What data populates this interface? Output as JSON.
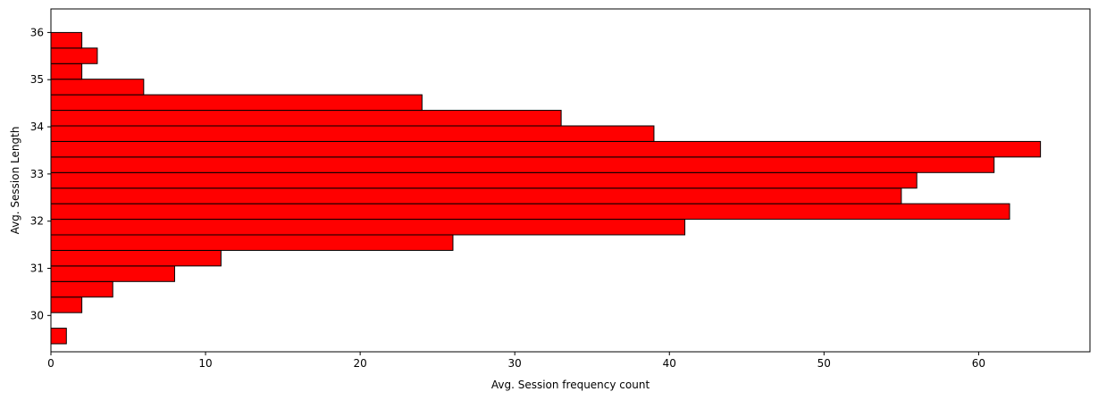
{
  "chart_data": {
    "type": "bar",
    "orientation": "horizontal",
    "title": "",
    "xlabel": "Avg. Session frequency count",
    "ylabel": "Avg. Session Length",
    "xlim": [
      0,
      67.2
    ],
    "ylim": [
      29.23,
      36.5
    ],
    "xticks": [
      0,
      10,
      20,
      30,
      40,
      50,
      60
    ],
    "yticks": [
      30,
      31,
      32,
      33,
      34,
      35,
      36
    ],
    "bar_color": "#ff0000",
    "edge_color": "#000000",
    "grid": false,
    "legend": "none",
    "bins": [
      {
        "y0": 29.4,
        "y1": 29.73,
        "count": 1
      },
      {
        "y0": 29.73,
        "y1": 30.06,
        "count": 0
      },
      {
        "y0": 30.06,
        "y1": 30.39,
        "count": 2
      },
      {
        "y0": 30.39,
        "y1": 30.72,
        "count": 4
      },
      {
        "y0": 30.72,
        "y1": 31.05,
        "count": 8
      },
      {
        "y0": 31.05,
        "y1": 31.38,
        "count": 11
      },
      {
        "y0": 31.38,
        "y1": 31.71,
        "count": 26
      },
      {
        "y0": 31.71,
        "y1": 32.04,
        "count": 41
      },
      {
        "y0": 32.04,
        "y1": 32.37,
        "count": 62
      },
      {
        "y0": 32.37,
        "y1": 32.7,
        "count": 55
      },
      {
        "y0": 32.7,
        "y1": 33.03,
        "count": 56
      },
      {
        "y0": 33.03,
        "y1": 33.36,
        "count": 61
      },
      {
        "y0": 33.36,
        "y1": 33.69,
        "count": 64
      },
      {
        "y0": 33.69,
        "y1": 34.02,
        "count": 39
      },
      {
        "y0": 34.02,
        "y1": 34.35,
        "count": 33
      },
      {
        "y0": 34.35,
        "y1": 34.68,
        "count": 24
      },
      {
        "y0": 34.68,
        "y1": 35.01,
        "count": 6
      },
      {
        "y0": 35.01,
        "y1": 35.34,
        "count": 2
      },
      {
        "y0": 35.34,
        "y1": 35.67,
        "count": 3
      },
      {
        "y0": 35.67,
        "y1": 36.0,
        "count": 2
      }
    ]
  }
}
